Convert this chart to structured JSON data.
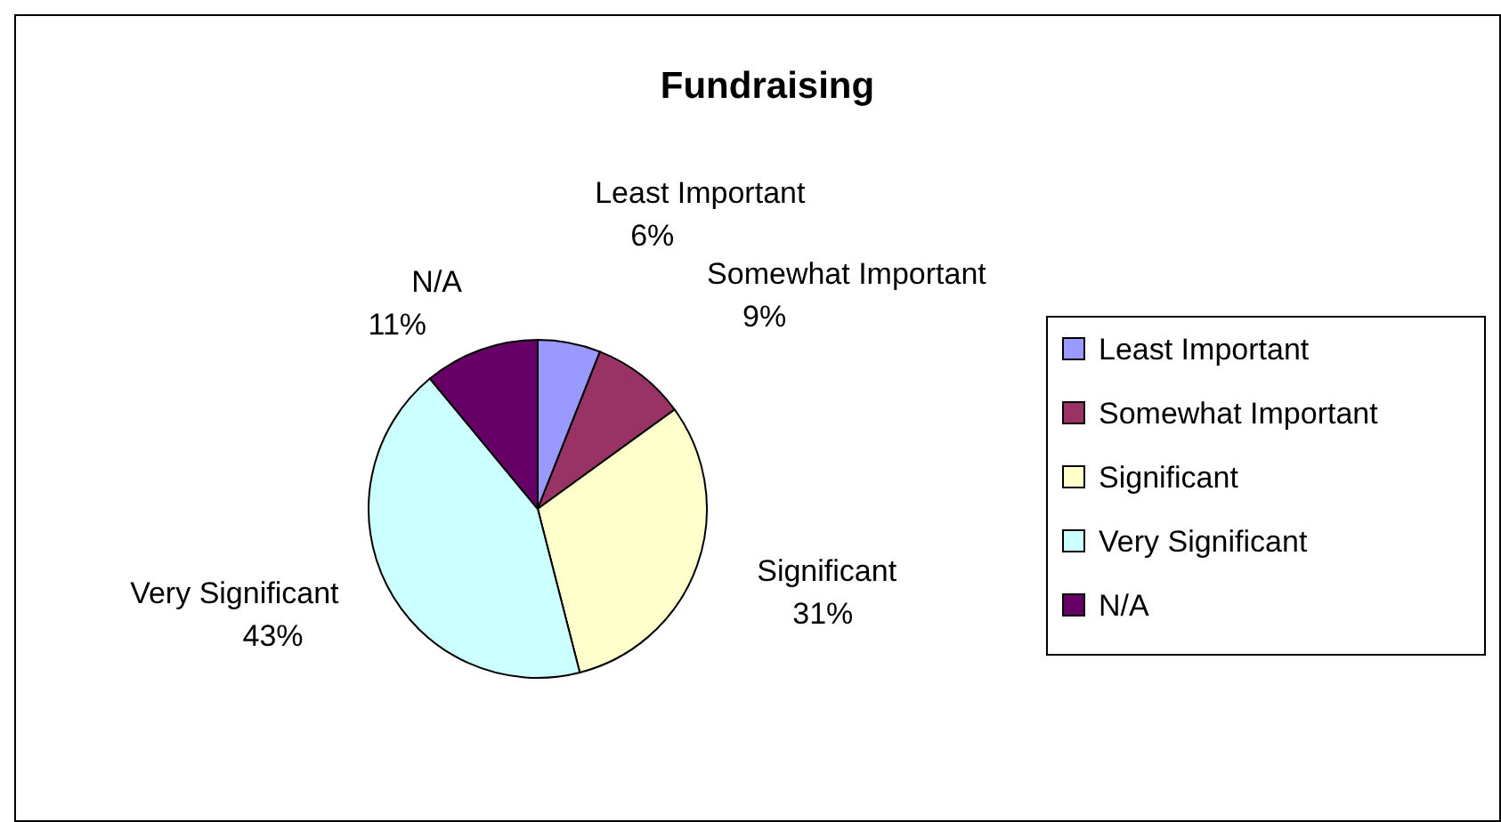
{
  "chart_data": {
    "type": "pie",
    "title": "Fundraising",
    "categories": [
      "Least Important",
      "Somewhat Important",
      "Significant",
      "Very Significant",
      "N/A"
    ],
    "values": [
      6,
      9,
      31,
      43,
      11
    ],
    "colors": [
      "#9999ff",
      "#993366",
      "#ffffcc",
      "#ccffff",
      "#660066"
    ],
    "value_labels": [
      "6%",
      "9%",
      "31%",
      "43%",
      "11%"
    ],
    "legend": "right"
  }
}
